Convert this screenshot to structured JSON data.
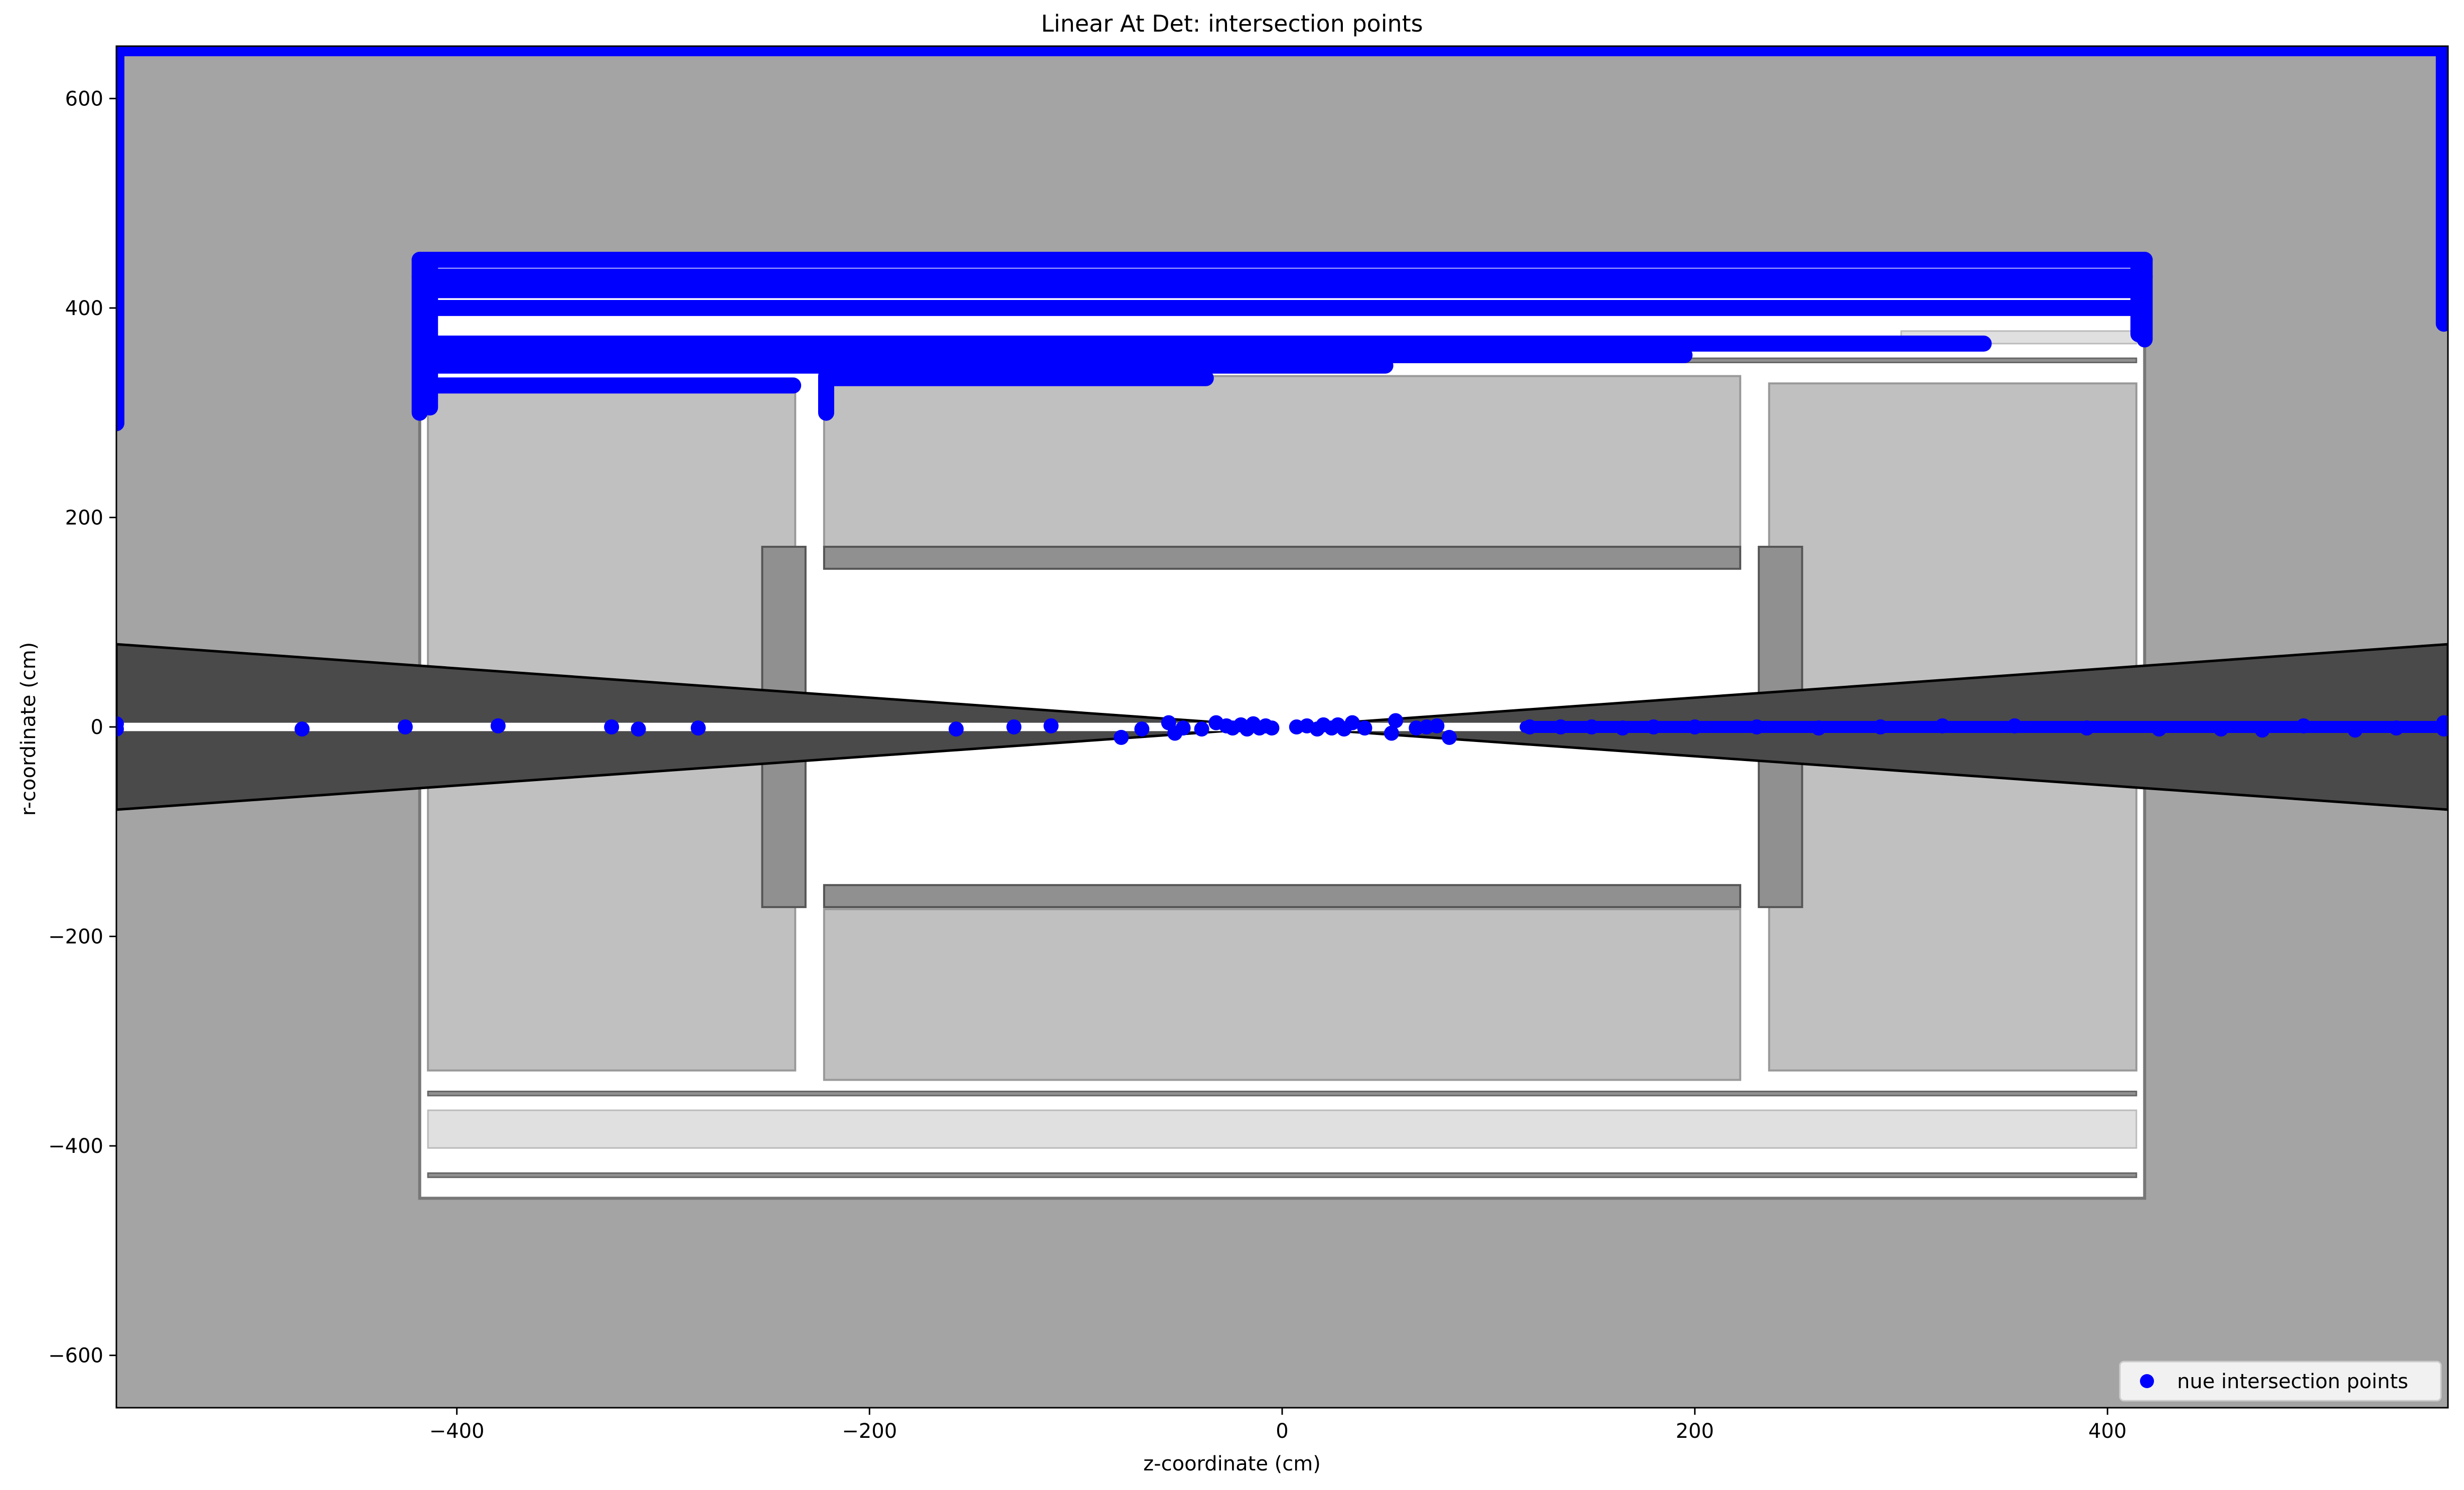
{
  "chart_data": {
    "type": "scatter",
    "title": "Linear At Det: intersection points",
    "xlabel": "z-coordinate (cm)",
    "ylabel": "r-coordinate (cm)",
    "xlim": [
      -565,
      565
    ],
    "ylim": [
      -650,
      650
    ],
    "xticks": [
      -400,
      -200,
      0,
      200,
      400
    ],
    "yticks": [
      -600,
      -400,
      -200,
      0,
      200,
      400,
      600
    ],
    "xtick_labels": [
      "−400",
      "−200",
      "0",
      "200",
      "400"
    ],
    "ytick_labels": [
      "−600",
      "−400",
      "−200",
      "0",
      "200",
      "400",
      "600"
    ],
    "grid": false,
    "legend_position": "lower right",
    "colors": {
      "points": "#0000ff",
      "world": "#a4a4a4",
      "calorimeter": "#c0c0c0",
      "support": "#909090",
      "cone": "#4a4a4a",
      "light_band": "#e0e0e0"
    },
    "series": [
      {
        "name": "nue intersection points",
        "color": "#0000ff",
        "marker": "circle",
        "horizontal_bands": [
          {
            "y": 648,
            "x_from": -565,
            "x_to": 565
          },
          {
            "y": 446,
            "x_from": -418,
            "x_to": 418
          },
          {
            "y": 430,
            "x_from": -418,
            "x_to": 418
          },
          {
            "y": 417,
            "x_from": -415,
            "x_to": 415
          },
          {
            "y": 400,
            "x_from": -415,
            "x_to": 415
          },
          {
            "y": 366,
            "x_from": -410,
            "x_to": 340
          },
          {
            "y": 355,
            "x_from": -410,
            "x_to": 195
          },
          {
            "y": 345,
            "x_from": -410,
            "x_to": 50
          },
          {
            "y": 333,
            "x_from": -220,
            "x_to": -37
          },
          {
            "y": 326,
            "x_from": -410,
            "x_to": -237
          }
        ],
        "vertical_bands": [
          {
            "x": -565,
            "y_from": 290,
            "y_to": 650
          },
          {
            "x": 563,
            "y_from": 385,
            "y_to": 650
          },
          {
            "x": -418,
            "y_from": 300,
            "y_to": 446
          },
          {
            "x": -413,
            "y_from": 305,
            "y_to": 440
          },
          {
            "x": 418,
            "y_from": 370,
            "y_to": 446
          },
          {
            "x": 415,
            "y_from": 375,
            "y_to": 440
          },
          {
            "x": -221,
            "y_from": 300,
            "y_to": 335
          }
        ],
        "points": [
          {
            "x": -565,
            "y": 3
          },
          {
            "x": -565,
            "y": -2
          },
          {
            "x": -475,
            "y": -2
          },
          {
            "x": -425,
            "y": 0
          },
          {
            "x": -380,
            "y": 1
          },
          {
            "x": -325,
            "y": 0
          },
          {
            "x": -312,
            "y": -2
          },
          {
            "x": -283,
            "y": -1
          },
          {
            "x": -158,
            "y": -2
          },
          {
            "x": -130,
            "y": 0
          },
          {
            "x": -112,
            "y": 1
          },
          {
            "x": -78,
            "y": -10
          },
          {
            "x": -68,
            "y": -2
          },
          {
            "x": -55,
            "y": 4
          },
          {
            "x": -52,
            "y": -6
          },
          {
            "x": -48,
            "y": -1
          },
          {
            "x": -39,
            "y": -2
          },
          {
            "x": -32,
            "y": 4
          },
          {
            "x": -27,
            "y": 1
          },
          {
            "x": -24,
            "y": -1
          },
          {
            "x": -20,
            "y": 2
          },
          {
            "x": -17,
            "y": -2
          },
          {
            "x": -14,
            "y": 3
          },
          {
            "x": -11,
            "y": -1
          },
          {
            "x": -8,
            "y": 1
          },
          {
            "x": -5,
            "y": -1
          },
          {
            "x": 7,
            "y": 0
          },
          {
            "x": 12,
            "y": 1
          },
          {
            "x": 17,
            "y": -2
          },
          {
            "x": 20,
            "y": 2
          },
          {
            "x": 24,
            "y": -1
          },
          {
            "x": 27,
            "y": 2
          },
          {
            "x": 30,
            "y": -2
          },
          {
            "x": 34,
            "y": 4
          },
          {
            "x": 40,
            "y": -1
          },
          {
            "x": 53,
            "y": -6
          },
          {
            "x": 55,
            "y": 6
          },
          {
            "x": 65,
            "y": -1
          },
          {
            "x": 70,
            "y": 0
          },
          {
            "x": 75,
            "y": 1
          },
          {
            "x": 81,
            "y": -10
          },
          {
            "x": 120,
            "y": 0
          },
          {
            "x": 135,
            "y": 0
          },
          {
            "x": 150,
            "y": 0
          },
          {
            "x": 165,
            "y": -1
          },
          {
            "x": 180,
            "y": 0
          },
          {
            "x": 200,
            "y": 0
          },
          {
            "x": 230,
            "y": 0
          },
          {
            "x": 260,
            "y": -1
          },
          {
            "x": 290,
            "y": 0
          },
          {
            "x": 320,
            "y": 1
          },
          {
            "x": 355,
            "y": 1
          },
          {
            "x": 390,
            "y": -1
          },
          {
            "x": 425,
            "y": -2
          },
          {
            "x": 455,
            "y": -2
          },
          {
            "x": 475,
            "y": -3
          },
          {
            "x": 495,
            "y": 1
          },
          {
            "x": 520,
            "y": -3
          },
          {
            "x": 540,
            "y": -1
          },
          {
            "x": 563,
            "y": -2
          },
          {
            "x": 563,
            "y": 4
          }
        ],
        "z_band": {
          "y": 0,
          "x_from": 118,
          "x_to": 565
        }
      }
    ],
    "regions": [
      {
        "kind": "world",
        "x": [
          -565,
          565
        ],
        "y": [
          -650,
          650
        ]
      },
      {
        "kind": "detector_outline",
        "x": [
          -418,
          418
        ],
        "y": [
          -450,
          450
        ]
      },
      {
        "kind": "calorimeter",
        "x": [
          -414,
          -236
        ],
        "y": [
          -328,
          328
        ]
      },
      {
        "kind": "calorimeter",
        "x": [
          -222,
          222
        ],
        "y": [
          172,
          335
        ]
      },
      {
        "kind": "calorimeter",
        "x": [
          -222,
          222
        ],
        "y": [
          -337,
          -174
        ]
      },
      {
        "kind": "calorimeter",
        "x": [
          236,
          414
        ],
        "y": [
          -328,
          328
        ]
      },
      {
        "kind": "support",
        "x": [
          -222,
          222
        ],
        "y": [
          151,
          172
        ]
      },
      {
        "kind": "support",
        "x": [
          -222,
          222
        ],
        "y": [
          -172,
          -151
        ]
      },
      {
        "kind": "support",
        "x": [
          -252,
          -231
        ],
        "y": [
          -172,
          172
        ]
      },
      {
        "kind": "support",
        "x": [
          231,
          252
        ],
        "y": [
          -172,
          172
        ]
      },
      {
        "kind": "thin_band",
        "x": [
          -414,
          414
        ],
        "y": [
          348,
          352
        ]
      },
      {
        "kind": "thin_band",
        "x": [
          -414,
          414
        ],
        "y": [
          -352,
          -348
        ]
      },
      {
        "kind": "thin_band",
        "x": [
          -414,
          414
        ],
        "y": [
          -430,
          -426
        ]
      },
      {
        "kind": "light_band",
        "x": [
          -414,
          414
        ],
        "y": [
          -402,
          -366
        ]
      },
      {
        "kind": "light_band",
        "x": [
          300,
          414
        ],
        "y": [
          366,
          378
        ]
      }
    ],
    "cones": [
      {
        "apex": [
          0,
          0
        ],
        "end_x": -565,
        "end_r": 79
      },
      {
        "apex": [
          0,
          0
        ],
        "end_x": 565,
        "end_r": 79
      }
    ]
  }
}
